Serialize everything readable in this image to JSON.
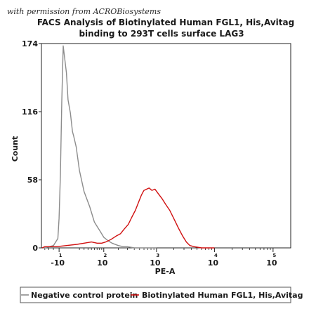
{
  "watermark": "with permission from ACROBiosystems",
  "chart_data": {
    "type": "line",
    "title": "FACS Analysis of Biotinylated Human FGL1, His,Avitag",
    "subtitle": "binding to 293T cells surface LAG3",
    "xlabel": "PE-A",
    "ylabel": "Count",
    "x_scale": "biexponential",
    "x_ticks": [
      {
        "base": "-10",
        "exp": "1",
        "value": -10
      },
      {
        "base": "10",
        "exp": "2",
        "value": 100
      },
      {
        "base": "10",
        "exp": "3",
        "value": 1000
      },
      {
        "base": "10",
        "exp": "4",
        "value": 10000
      },
      {
        "base": "10",
        "exp": "5",
        "value": 100000
      }
    ],
    "y_ticks": [
      "0",
      "58",
      "116",
      "174"
    ],
    "ylim": [
      0,
      174
    ],
    "grid": false,
    "legend_position": "bottom",
    "series": [
      {
        "name": "Negative control protein",
        "color": "#8c8c8c",
        "points": [
          [
            -500,
            0
          ],
          [
            -100,
            0
          ],
          [
            -40,
            0
          ],
          [
            -20,
            2
          ],
          [
            -12,
            8
          ],
          [
            -10,
            25
          ],
          [
            -8,
            62
          ],
          [
            -6,
            125
          ],
          [
            -4,
            172
          ],
          [
            -2,
            161
          ],
          [
            0,
            149
          ],
          [
            2,
            126
          ],
          [
            5,
            115
          ],
          [
            8,
            99
          ],
          [
            10,
            95
          ],
          [
            14,
            86
          ],
          [
            20,
            66
          ],
          [
            30,
            48
          ],
          [
            45,
            35
          ],
          [
            60,
            22
          ],
          [
            80,
            15
          ],
          [
            100,
            9
          ],
          [
            125,
            6
          ],
          [
            150,
            4
          ],
          [
            200,
            2
          ],
          [
            250,
            1
          ],
          [
            300,
            1
          ],
          [
            400,
            0
          ],
          [
            1000,
            0
          ]
        ]
      },
      {
        "name": "Biotinylated Human FGL1, His,Avitag",
        "color": "#d01010",
        "points": [
          [
            -200,
            0
          ],
          [
            -40,
            1
          ],
          [
            -15,
            1
          ],
          [
            0,
            2
          ],
          [
            15,
            3
          ],
          [
            30,
            4
          ],
          [
            50,
            5
          ],
          [
            70,
            4
          ],
          [
            90,
            4
          ],
          [
            110,
            5
          ],
          [
            140,
            7
          ],
          [
            180,
            10
          ],
          [
            220,
            12
          ],
          [
            260,
            16
          ],
          [
            310,
            20
          ],
          [
            360,
            26
          ],
          [
            420,
            32
          ],
          [
            480,
            39
          ],
          [
            540,
            45
          ],
          [
            600,
            49
          ],
          [
            670,
            50
          ],
          [
            740,
            51
          ],
          [
            830,
            49
          ],
          [
            940,
            50
          ],
          [
            1080,
            46
          ],
          [
            1250,
            42
          ],
          [
            1450,
            37
          ],
          [
            1700,
            32
          ],
          [
            2000,
            25
          ],
          [
            2400,
            17
          ],
          [
            2850,
            10
          ],
          [
            3300,
            5
          ],
          [
            3800,
            2
          ],
          [
            4500,
            1
          ],
          [
            6000,
            0
          ],
          [
            10000,
            0
          ]
        ]
      }
    ]
  }
}
